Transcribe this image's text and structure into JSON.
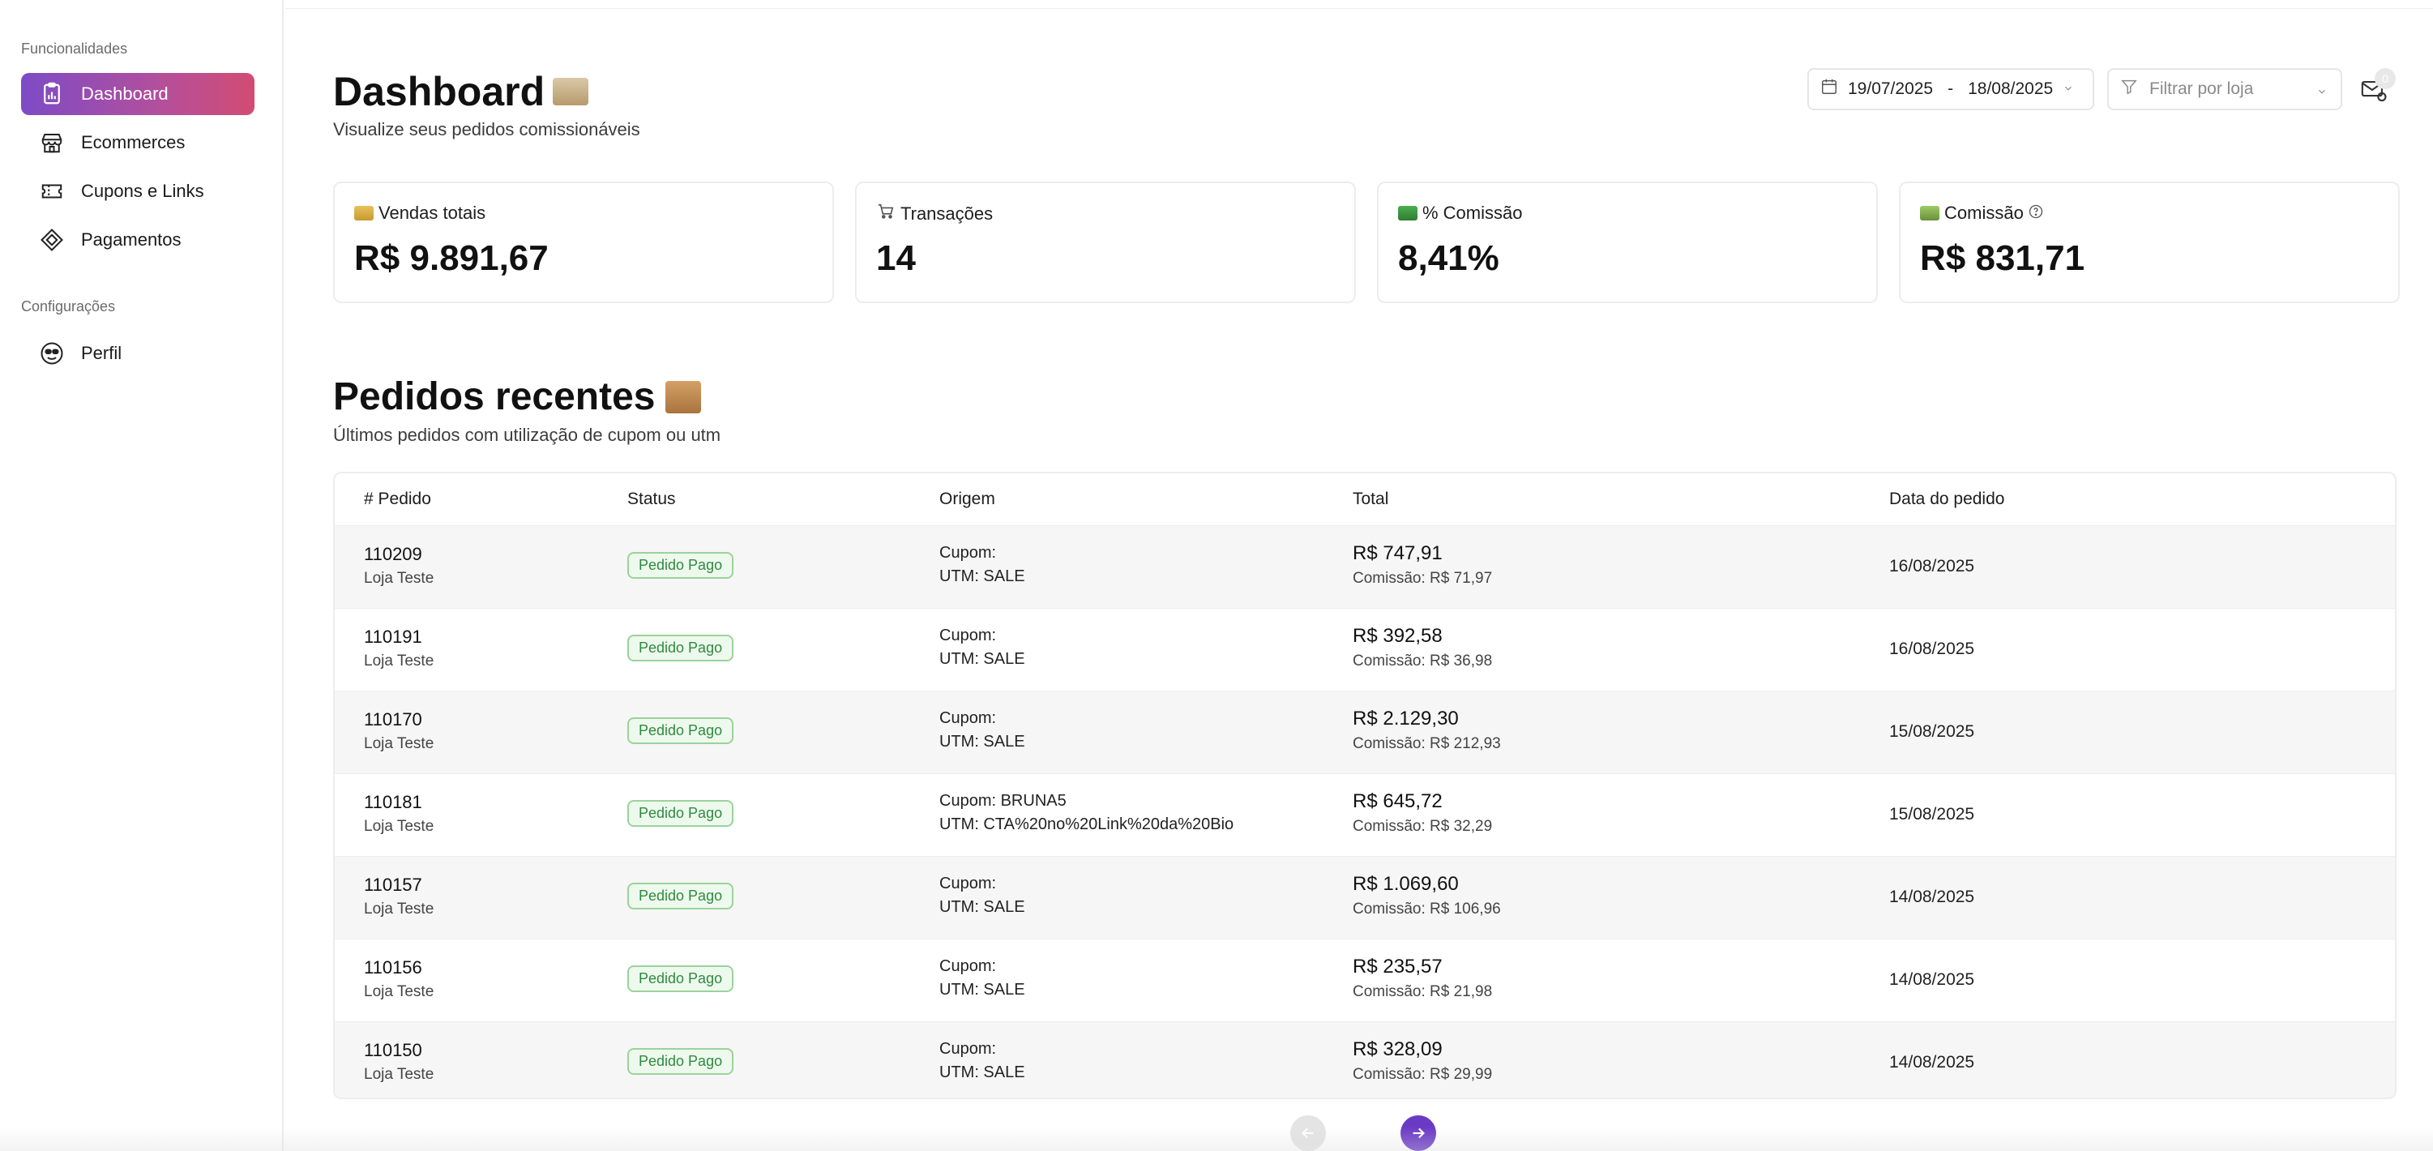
{
  "sidebar": {
    "sections": {
      "features": "Funcionalidades",
      "settings": "Configurações"
    },
    "items": [
      {
        "label": "Dashboard",
        "icon": "dashboard-icon",
        "active": true
      },
      {
        "label": "Ecommerces",
        "icon": "store-icon",
        "active": false
      },
      {
        "label": "Cupons e Links",
        "icon": "ticket-icon",
        "active": false
      },
      {
        "label": "Pagamentos",
        "icon": "diamond-icon",
        "active": false
      },
      {
        "label": "Perfil",
        "icon": "face-icon",
        "active": false
      }
    ]
  },
  "header": {
    "title": "Dashboard",
    "subtitle": "Visualize seus pedidos comissionáveis",
    "date_start": "19/07/2025",
    "date_separator": "-",
    "date_end": "18/08/2025",
    "store_filter_placeholder": "Filtrar por loja",
    "notification_count": "0"
  },
  "stats": [
    {
      "label": "Vendas totais",
      "value": "R$ 9.891,67",
      "emoji": "credit-card-emoji"
    },
    {
      "label": "Transações",
      "value": "14",
      "emoji": "cart-emoji"
    },
    {
      "label": "% Comissão",
      "value": "8,41%",
      "emoji": "money-emoji"
    },
    {
      "label": "Comissão",
      "value": "R$ 831,71",
      "emoji": "money-bag-emoji",
      "has_help": true
    }
  ],
  "orders": {
    "title": "Pedidos recentes",
    "subtitle": "Últimos pedidos com utilização de cupom ou utm",
    "columns": [
      "# Pedido",
      "Status",
      "Origem",
      "Total",
      "Data do pedido"
    ],
    "rows": [
      {
        "id": "110209",
        "store": "Loja Teste",
        "status": "Pedido Pago",
        "coupon": "Cupom:",
        "utm": "UTM: SALE",
        "total": "R$ 747,91",
        "commission": "Comissão: R$ 71,97",
        "date": "16/08/2025"
      },
      {
        "id": "110191",
        "store": "Loja Teste",
        "status": "Pedido Pago",
        "coupon": "Cupom:",
        "utm": "UTM: SALE",
        "total": "R$ 392,58",
        "commission": "Comissão: R$ 36,98",
        "date": "16/08/2025"
      },
      {
        "id": "110170",
        "store": "Loja Teste",
        "status": "Pedido Pago",
        "coupon": "Cupom:",
        "utm": "UTM: SALE",
        "total": "R$ 2.129,30",
        "commission": "Comissão: R$ 212,93",
        "date": "15/08/2025"
      },
      {
        "id": "110181",
        "store": "Loja Teste",
        "status": "Pedido Pago",
        "coupon": "Cupom: BRUNA5",
        "utm": "UTM: CTA%20no%20Link%20da%20Bio",
        "total": "R$ 645,72",
        "commission": "Comissão: R$ 32,29",
        "date": "15/08/2025"
      },
      {
        "id": "110157",
        "store": "Loja Teste",
        "status": "Pedido Pago",
        "coupon": "Cupom:",
        "utm": "UTM: SALE",
        "total": "R$ 1.069,60",
        "commission": "Comissão: R$ 106,96",
        "date": "14/08/2025"
      },
      {
        "id": "110156",
        "store": "Loja Teste",
        "status": "Pedido Pago",
        "coupon": "Cupom:",
        "utm": "UTM: SALE",
        "total": "R$ 235,57",
        "commission": "Comissão: R$ 21,98",
        "date": "14/08/2025"
      },
      {
        "id": "110150",
        "store": "Loja Teste",
        "status": "Pedido Pago",
        "coupon": "Cupom:",
        "utm": "UTM: SALE",
        "total": "R$ 328,09",
        "commission": "Comissão: R$ 29,99",
        "date": "14/08/2025"
      }
    ]
  },
  "colors": {
    "accent_start": "#7d4bc6",
    "accent_end": "#d24c73",
    "status_green": "#2e8b3d",
    "pagination_active": "#6a3ac4"
  }
}
